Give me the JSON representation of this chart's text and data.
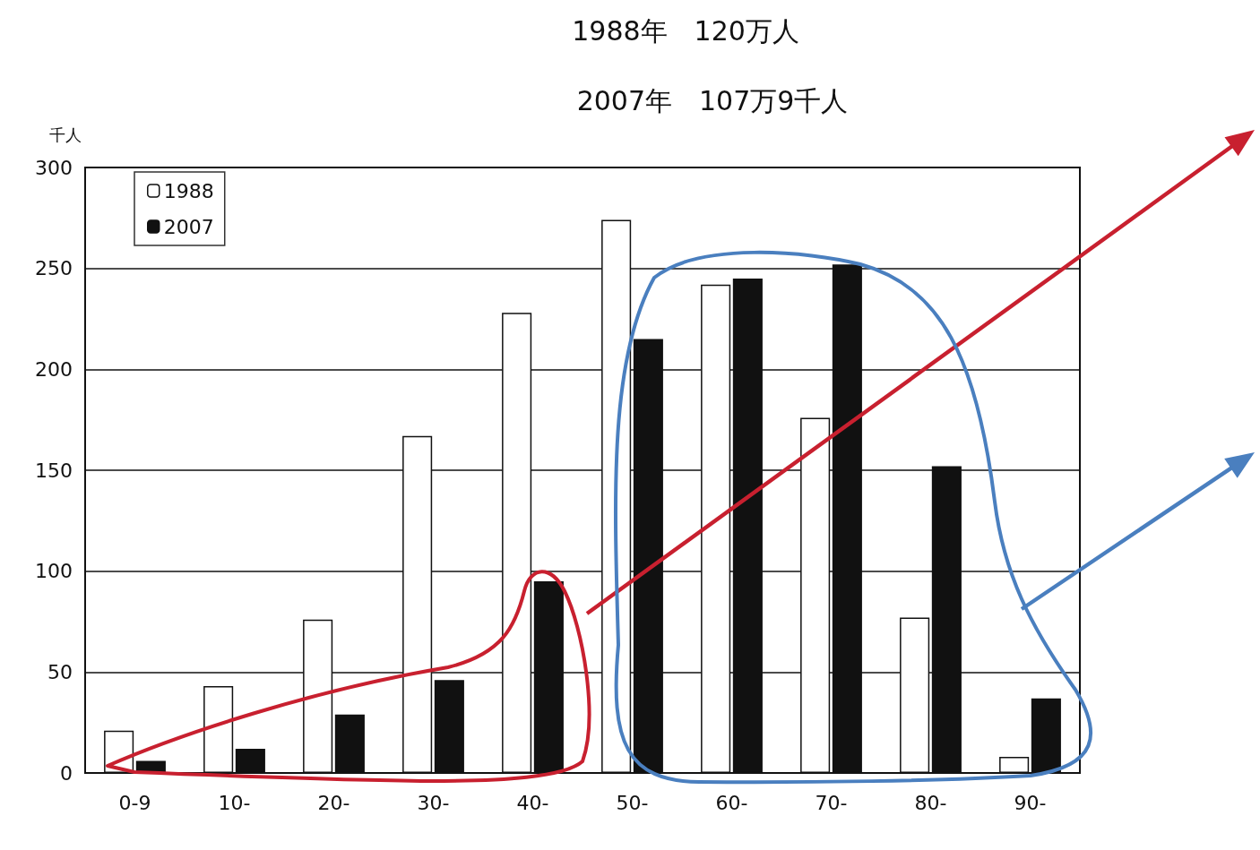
{
  "chart_data": {
    "type": "bar",
    "title": "1988年　120万人",
    "subtitle": "2007年　107万9千人",
    "ylabel": "千人",
    "categories": [
      "0-9",
      "10-",
      "20-",
      "30-",
      "40-",
      "50-",
      "60-",
      "70-",
      "80-",
      "90-"
    ],
    "series": [
      {
        "name": "1988",
        "color": "#ffffff",
        "values": [
          21,
          43,
          76,
          167,
          228,
          274,
          242,
          176,
          77,
          8
        ]
      },
      {
        "name": "2007",
        "color": "#111111",
        "values": [
          6,
          12,
          29,
          46,
          95,
          215,
          245,
          252,
          152,
          37
        ]
      }
    ],
    "ylim": [
      0,
      300
    ],
    "yticks": [
      0,
      50,
      100,
      150,
      200,
      250,
      300
    ],
    "grid": "y",
    "legend": "top left"
  }
}
